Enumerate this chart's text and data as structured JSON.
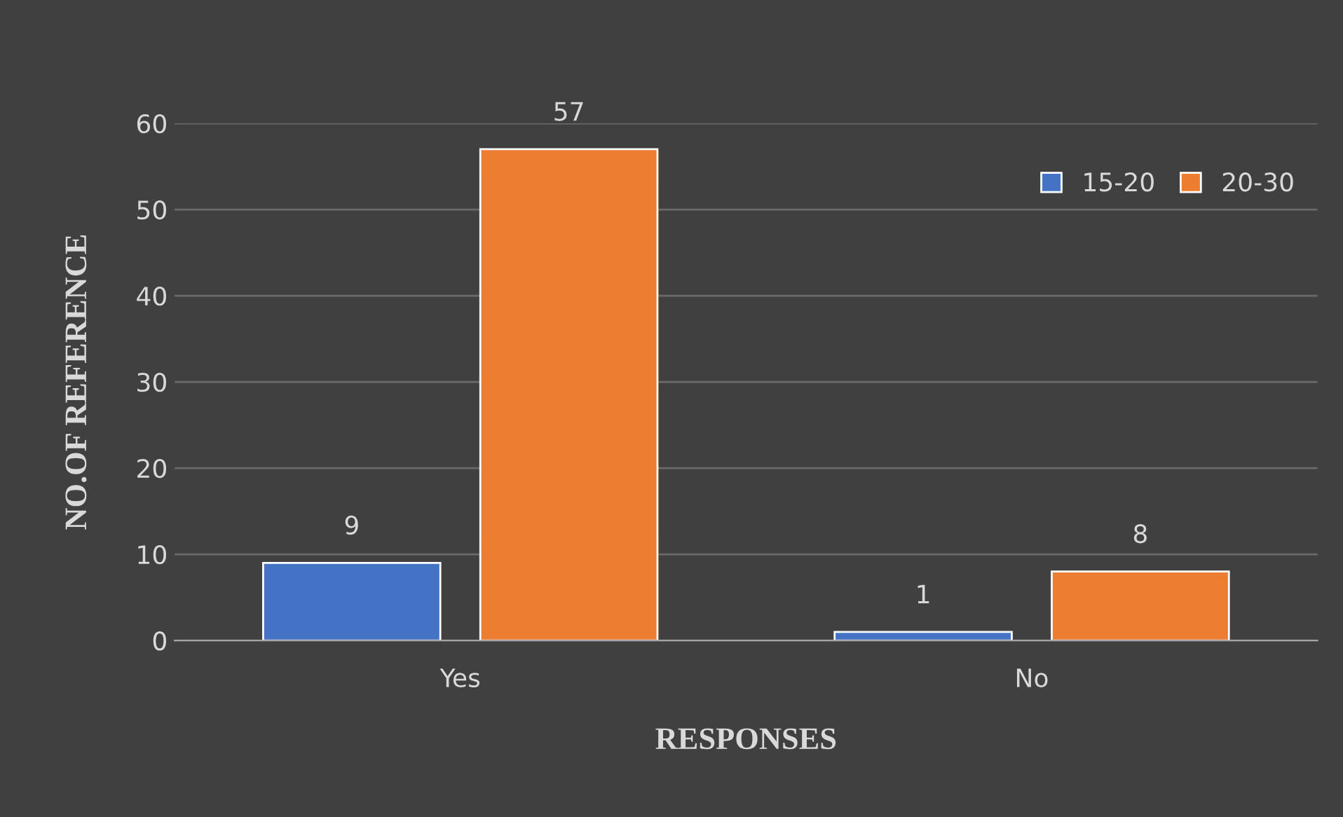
{
  "chart_data": {
    "type": "bar",
    "xlabel": "RESPONSES",
    "ylabel": "NO.OF REFERENCE",
    "categories": [
      "Yes",
      "No"
    ],
    "series": [
      {
        "name": "15-20",
        "color": "#4472c4",
        "values": [
          9,
          1
        ]
      },
      {
        "name": "20-30",
        "color": "#ed7d31",
        "values": [
          57,
          8
        ]
      }
    ],
    "ylim": [
      0,
      60
    ],
    "yticks": [
      0,
      10,
      20,
      30,
      40,
      50,
      60
    ],
    "grid": "y",
    "legend": "top right",
    "data_labels": true
  }
}
